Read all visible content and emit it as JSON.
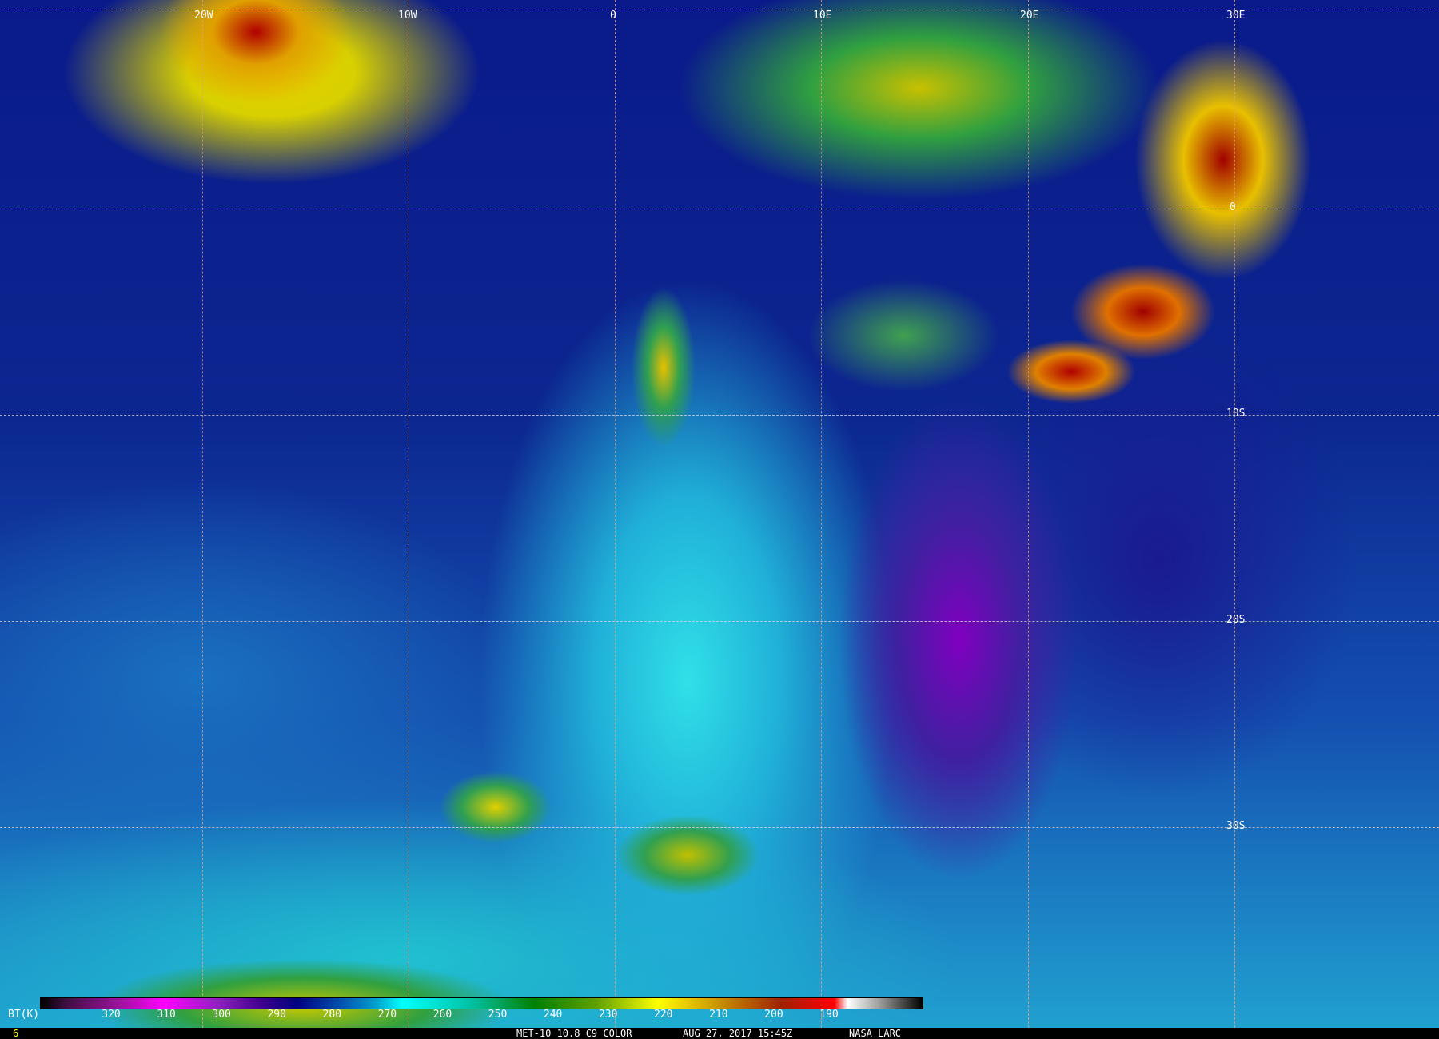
{
  "map": {
    "longitude_labels": [
      "20W",
      "10W",
      "0",
      "10E",
      "20E",
      "30E"
    ],
    "latitude_labels": [
      "0",
      "10S",
      "20S",
      "30S"
    ]
  },
  "colorbar": {
    "unit": "BT(K)",
    "ticks": [
      "320",
      "310",
      "300",
      "290",
      "280",
      "270",
      "260",
      "250",
      "240",
      "230",
      "220",
      "210",
      "200",
      "190"
    ]
  },
  "footer": {
    "frame": "6",
    "product": "MET-10 10.8 C9 COLOR",
    "datetime": "AUG 27, 2017 15:45Z",
    "credit": "NASA LARC",
    "frame_color": "#ffff00"
  }
}
